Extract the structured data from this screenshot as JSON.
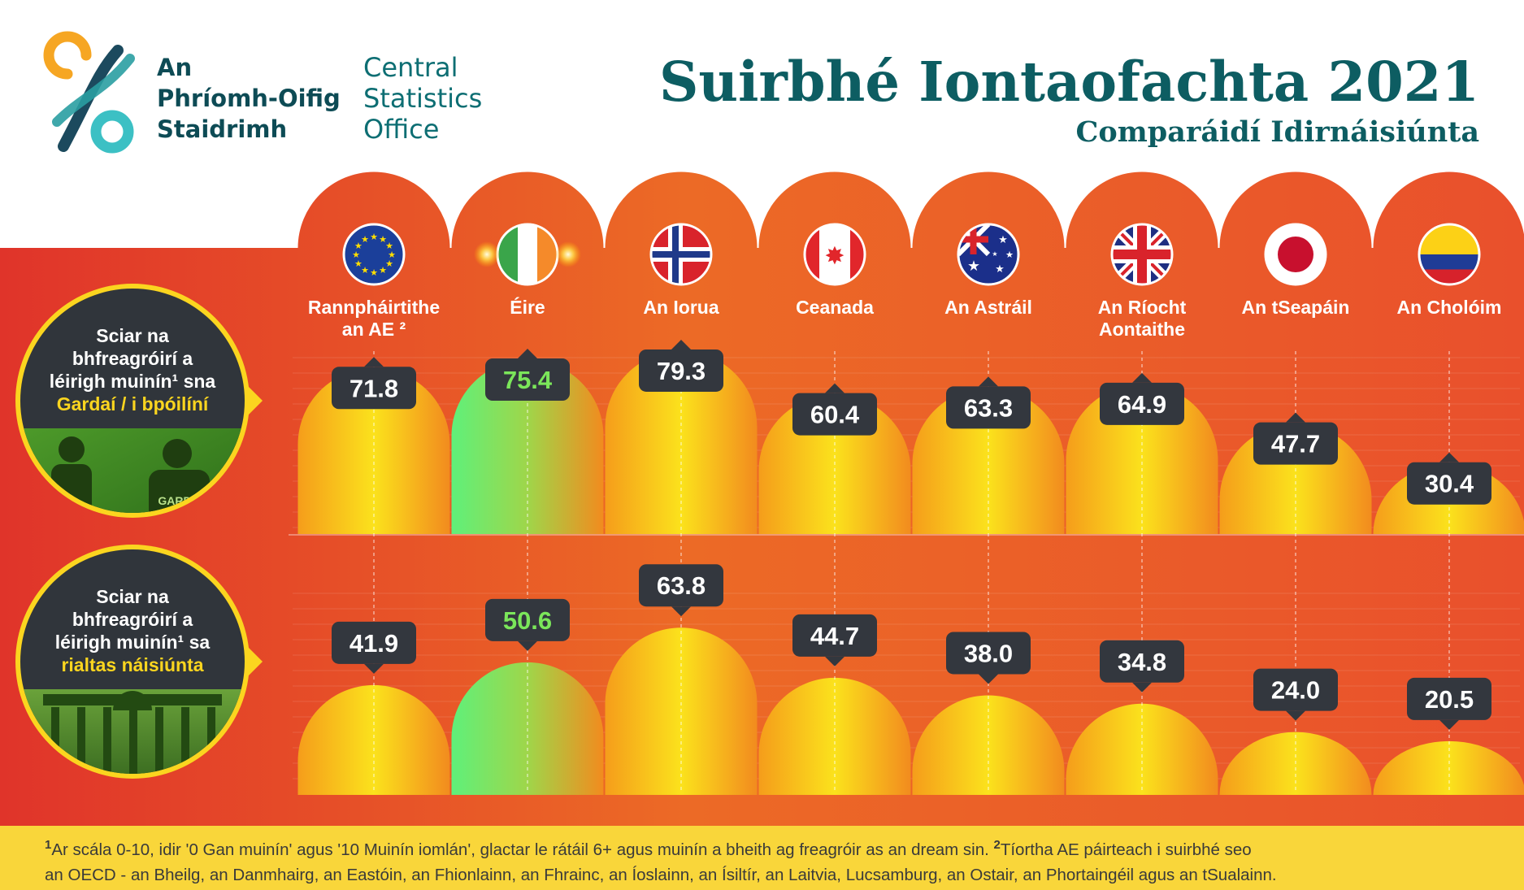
{
  "logo": {
    "name_ga": [
      "An",
      "Phríomh-Oifig",
      "Staidrimh"
    ],
    "name_en": [
      "Central",
      "Statistics",
      "Office"
    ]
  },
  "header": {
    "title": "Suirbhé Iontaofachta 2021",
    "subtitle": "Comparáidí Idirnáisiúnta"
  },
  "rows": [
    {
      "lines": [
        "Sciar na",
        "bhfreagróirí a",
        "léirigh muinín¹ sna"
      ],
      "highlight": "Gardaí / i bpóilíní",
      "photo_caption": "GARDA"
    },
    {
      "lines": [
        "Sciar na",
        "bhfreagróirí a",
        "léirigh muinín¹ sa"
      ],
      "highlight": "rialtas náisiúnta"
    }
  ],
  "countries": [
    {
      "name": [
        "Rannpháirtithe",
        "an AE ²"
      ],
      "flag": "eu-flag-icon"
    },
    {
      "name": [
        "Éire"
      ],
      "flag": "ireland-flag-icon"
    },
    {
      "name": [
        "An Iorua"
      ],
      "flag": "norway-flag-icon"
    },
    {
      "name": [
        "Ceanada"
      ],
      "flag": "canada-flag-icon"
    },
    {
      "name": [
        "An Astráil"
      ],
      "flag": "australia-flag-icon"
    },
    {
      "name": [
        "An Ríocht",
        "Aontaithe"
      ],
      "flag": "uk-flag-icon"
    },
    {
      "name": [
        "An tSeapáin"
      ],
      "flag": "japan-flag-icon"
    },
    {
      "name": [
        "An Cholóim"
      ],
      "flag": "colombia-flag-icon"
    }
  ],
  "chart_data": {
    "type": "bar",
    "categories": [
      "Rannpháirtithe an AE",
      "Éire",
      "An Iorua",
      "Ceanada",
      "An Astráil",
      "An Ríocht Aontaithe",
      "An tSeapáin",
      "An Cholóim"
    ],
    "series": [
      {
        "values": [
          71.8,
          75.4,
          79.3,
          60.4,
          63.3,
          64.9,
          47.7,
          30.4
        ],
        "labels": [
          "71.8",
          "75.4",
          "79.3",
          "60.4",
          "63.3",
          "64.9",
          "47.7",
          "30.4"
        ]
      },
      {
        "values": [
          41.9,
          50.6,
          63.8,
          44.7,
          38.0,
          34.8,
          24.0,
          20.5
        ],
        "labels": [
          "41.9",
          "50.6",
          "63.8",
          "44.7",
          "38.0",
          "34.8",
          "24.0",
          "20.5"
        ]
      }
    ],
    "highlight_category": "Éire",
    "colors": {
      "background": "#e8502a",
      "bar_orange": "#f7a11a",
      "bar_yellow": "#fbe51a",
      "bar_ireland_green": "#5fe87a",
      "label_box": "#33373e",
      "label_text": "#ffffff",
      "label_text_ireland": "#7be65a",
      "highlight": "#fbd51f",
      "title": "#0d5d62"
    }
  },
  "footnote": {
    "mark1": "1",
    "text1": "Ar scála 0-10, idir '0 Gan muinín' agus '10 Muinín iomlán', glactar le rátáil 6+ agus muinín a bheith ag freagróir as an dream sin.",
    "mark2": "2",
    "text2a": "Tíortha AE páirteach i suirbhé seo",
    "text2b": "an OECD - an Bheilg, an Danmhairg, an Eastóin, an Fhionlainn, an Fhrainc, an Íoslainn, an Ísiltír, an Laitvia, Lucsamburg, an Ostair, an Phortaingéil agus an tSualainn."
  }
}
